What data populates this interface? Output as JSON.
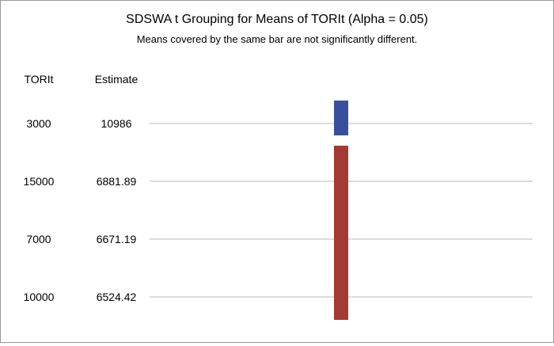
{
  "chart_data": {
    "type": "table",
    "title": "SDSWA t Grouping for Means of TORIt (Alpha = 0.05)",
    "subtitle": "Means covered by the same bar are not significantly different.",
    "columns": [
      "TORIt",
      "Estimate"
    ],
    "rows": [
      {
        "level": "3000",
        "estimate": "10986"
      },
      {
        "level": "15000",
        "estimate": "6881.89"
      },
      {
        "level": "7000",
        "estimate": "6671.19"
      },
      {
        "level": "10000",
        "estimate": "6524.42"
      }
    ],
    "groups": [
      {
        "rows": [
          0
        ],
        "color": "#3a4f9c"
      },
      {
        "rows": [
          1,
          2,
          3
        ],
        "color": "#a33a33"
      }
    ]
  }
}
